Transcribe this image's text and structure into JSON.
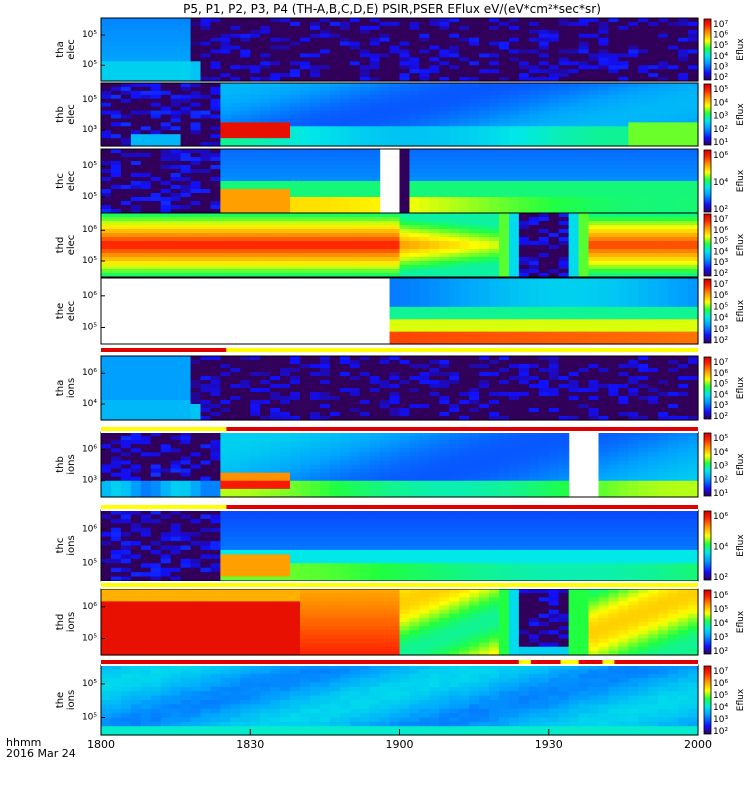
{
  "chart_data": {
    "type": "heatmap",
    "title": "P5, P1, P2, P3, P4 (TH-A,B,C,D,E) PSIR,PSER EFlux eV/(eV*cm²*sec*sr)",
    "xlabel_line1": "hhmm",
    "xlabel_line2": "2016 Mar 24",
    "x_ticks": [
      "1800",
      "1830",
      "1900",
      "1930",
      "2000"
    ],
    "x_range": [
      "18:00",
      "20:00"
    ],
    "colorbar_label": "Eflux",
    "panels": [
      {
        "id": "tha_elec",
        "label1": "tha",
        "label2": "elec",
        "y_ticks": [
          "10⁵",
          "10⁵"
        ],
        "cbar_ticks": [
          "10⁷",
          "10⁶",
          "10⁵",
          "10⁴",
          "10³",
          "10²"
        ]
      },
      {
        "id": "thb_elec",
        "label1": "thb",
        "label2": "elec",
        "y_ticks": [
          "10⁵",
          "10³"
        ],
        "cbar_ticks": [
          "10⁵",
          "10⁴",
          "10³",
          "10²",
          "10¹"
        ]
      },
      {
        "id": "thc_elec",
        "label1": "thc",
        "label2": "elec",
        "y_ticks": [
          "10⁵",
          "10⁵"
        ],
        "cbar_ticks": [
          "10⁶",
          "10⁴",
          "10²"
        ]
      },
      {
        "id": "thd_elec",
        "label1": "thd",
        "label2": "elec",
        "y_ticks": [
          "10⁶",
          "10⁵"
        ],
        "cbar_ticks": [
          "10⁷",
          "10⁶",
          "10⁵",
          "10⁴",
          "10³",
          "10²"
        ]
      },
      {
        "id": "the_elec",
        "label1": "the",
        "label2": "elec",
        "y_ticks": [
          "10⁶",
          "10⁵"
        ],
        "cbar_ticks": [
          "10⁷",
          "10⁶",
          "10⁵",
          "10⁴",
          "10³",
          "10²"
        ]
      },
      {
        "id": "tha_ions",
        "label1": "tha",
        "label2": "ions",
        "y_ticks": [
          "10⁶",
          "10⁴"
        ],
        "cbar_ticks": [
          "10⁷",
          "10⁶",
          "10⁵",
          "10⁴",
          "10³",
          "10²"
        ]
      },
      {
        "id": "thb_ions",
        "label1": "thb",
        "label2": "ions",
        "y_ticks": [
          "10⁶",
          "10³"
        ],
        "cbar_ticks": [
          "10⁵",
          "10⁴",
          "10³",
          "10²",
          "10¹"
        ]
      },
      {
        "id": "thc_ions",
        "label1": "thc",
        "label2": "ions",
        "y_ticks": [
          "10⁶",
          "10⁵"
        ],
        "cbar_ticks": [
          "10⁶",
          "10⁴",
          "10²"
        ]
      },
      {
        "id": "thd_ions",
        "label1": "thd",
        "label2": "ions",
        "y_ticks": [
          "10⁶",
          "10⁵"
        ],
        "cbar_ticks": [
          "10⁶",
          "10⁵",
          "10⁴",
          "10³",
          "10²"
        ]
      },
      {
        "id": "the_ions",
        "label1": "the",
        "label2": "ions",
        "y_ticks": [
          "10⁵",
          "10⁵"
        ],
        "cbar_ticks": [
          "10⁷",
          "10⁶",
          "10⁵",
          "10⁴",
          "10³",
          "10²"
        ]
      }
    ],
    "mode_bars": [
      {
        "after_panel": "the_elec",
        "segments": [
          {
            "from": 0.0,
            "to": 0.21,
            "color": "#e00000"
          },
          {
            "from": 0.21,
            "to": 1.0,
            "color": "#ffff00"
          }
        ]
      },
      {
        "after_panel": "tha_ions",
        "segments": [
          {
            "from": 0.0,
            "to": 0.21,
            "color": "#ffff00"
          },
          {
            "from": 0.21,
            "to": 1.0,
            "color": "#e00000"
          }
        ]
      },
      {
        "after_panel": "thb_ions",
        "segments": [
          {
            "from": 0.0,
            "to": 0.21,
            "color": "#ffff00"
          },
          {
            "from": 0.21,
            "to": 1.0,
            "color": "#e00000"
          }
        ]
      },
      {
        "after_panel": "thc_ions",
        "segments": [
          {
            "from": 0.0,
            "to": 1.0,
            "color": "#ffff00"
          }
        ]
      },
      {
        "after_panel": "thd_ions",
        "segments": [
          {
            "from": 0.0,
            "to": 0.7,
            "color": "#e00000"
          },
          {
            "from": 0.7,
            "to": 0.72,
            "color": "#ffff00"
          },
          {
            "from": 0.72,
            "to": 0.77,
            "color": "#e00000"
          },
          {
            "from": 0.77,
            "to": 0.8,
            "color": "#ffff00"
          },
          {
            "from": 0.8,
            "to": 0.84,
            "color": "#e00000"
          },
          {
            "from": 0.84,
            "to": 0.86,
            "color": "#ffff00"
          },
          {
            "from": 0.86,
            "to": 1.0,
            "color": "#e00000"
          }
        ]
      }
    ],
    "colors": {
      "background": "#ffffff",
      "frame": "#000000",
      "no_data": "#ffffff"
    }
  }
}
